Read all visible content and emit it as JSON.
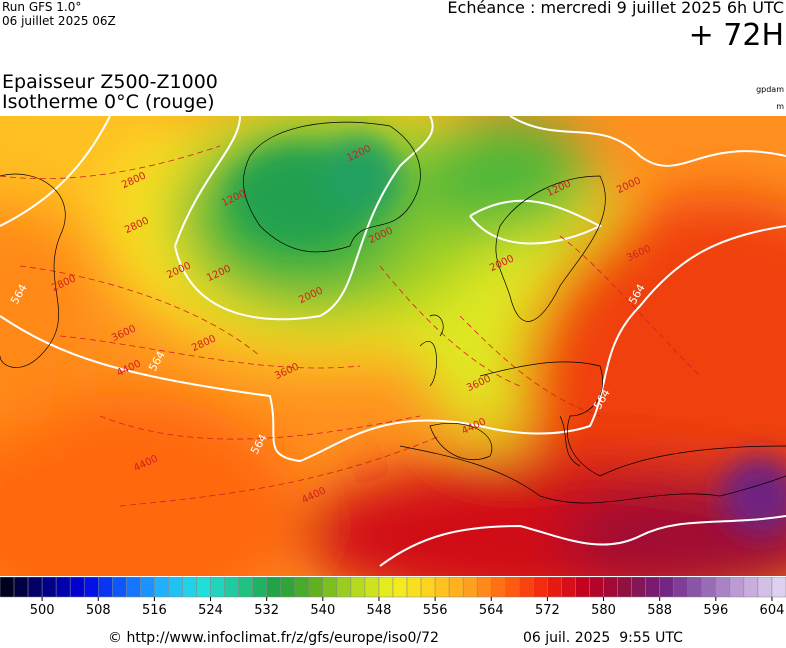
{
  "header": {
    "run": "Run GFS 1.0°",
    "run_date": "06 juillet 2025 06Z",
    "valid": "Echéance : mercredi 9 juillet 2025 6h UTC",
    "lead": "+ 72H"
  },
  "title": {
    "line1": "Epaisseur Z500-Z1000",
    "line2": "Isotherme 0°C (rouge)",
    "unit_thickness": "gpdam",
    "unit_iso": "m"
  },
  "map": {
    "isotherm_color": "#d22020",
    "thickness_color": "#ffffff",
    "isotherm_labels": [
      2800,
      2800,
      2800,
      2800,
      1200,
      1200,
      1200,
      1200,
      2000,
      2000,
      2000,
      2000,
      2000,
      3600,
      3600,
      3600,
      3600,
      4400,
      4400,
      4400,
      4400
    ],
    "thickness_labels": [
      564,
      564,
      564,
      564,
      564
    ]
  },
  "colorbar": {
    "range": [
      494,
      606
    ],
    "step": 2,
    "colors": [
      "#000020",
      "#000080",
      "#0000e0",
      "#1060ff",
      "#20b0ff",
      "#20e0e0",
      "#20c890",
      "#20a040",
      "#60b020",
      "#b0d820",
      "#f0f020",
      "#ffd020",
      "#ffa020",
      "#ff6010",
      "#f02010",
      "#c00020",
      "#901040",
      "#702080",
      "#9060b0",
      "#c0a0d8",
      "#e0d0f0"
    ],
    "ticks": [
      500,
      508,
      516,
      524,
      532,
      540,
      548,
      556,
      564,
      572,
      580,
      588,
      596,
      604
    ]
  },
  "footer": {
    "url": "© http://www.infoclimat.fr/z/gfs/europe/iso0/72",
    "generated": "06 juil. 2025  9:55 UTC"
  }
}
